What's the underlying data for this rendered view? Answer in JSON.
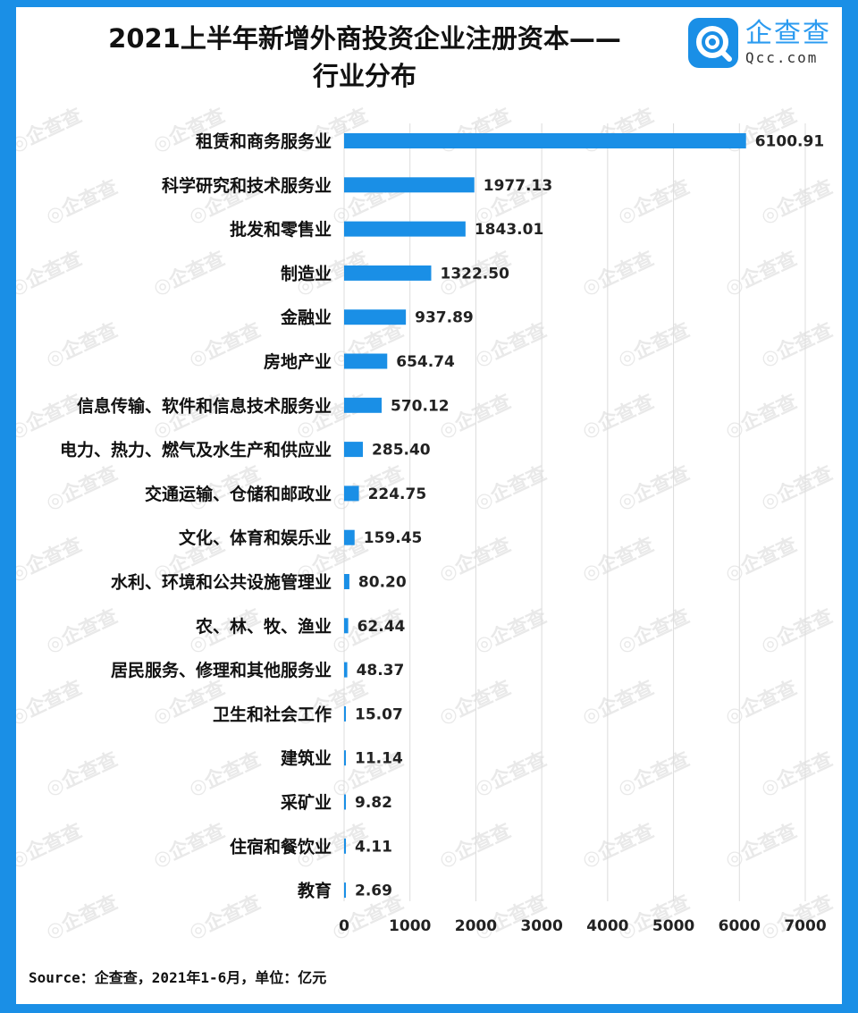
{
  "header": {
    "title_line1": "2021上半年新增外商投资企业注册资本——",
    "title_line2": "行业分布"
  },
  "logo": {
    "icon": "qcc-logo-icon",
    "name_cn": "企查查",
    "name_en": "Qcc.com"
  },
  "watermark_text": "企查查",
  "footer": {
    "source": "Source：企查查，2021年1-6月，单位：亿元"
  },
  "colors": {
    "bar": "#1a8fe6",
    "frame": "#1a8fe6",
    "grid": "#dcdcdc"
  },
  "chart_data": {
    "type": "bar",
    "orientation": "horizontal",
    "categories": [
      "租赁和商务服务业",
      "科学研究和技术服务业",
      "批发和零售业",
      "制造业",
      "金融业",
      "房地产业",
      "信息传输、软件和信息技术服务业",
      "电力、热力、燃气及水生产和供应业",
      "交通运输、仓储和邮政业",
      "文化、体育和娱乐业",
      "水利、环境和公共设施管理业",
      "农、林、牧、渔业",
      "居民服务、修理和其他服务业",
      "卫生和社会工作",
      "建筑业",
      "采矿业",
      "住宿和餐饮业",
      "教育"
    ],
    "values": [
      6100.91,
      1977.13,
      1843.01,
      1322.5,
      937.89,
      654.74,
      570.12,
      285.4,
      224.75,
      159.45,
      80.2,
      62.44,
      48.37,
      15.07,
      11.14,
      9.82,
      4.11,
      2.69
    ],
    "value_labels": [
      "6100.91",
      "1977.13",
      "1843.01",
      "1322.50",
      "937.89",
      "654.74",
      "570.12",
      "285.40",
      "224.75",
      "159.45",
      "80.20",
      "62.44",
      "48.37",
      "15.07",
      "11.14",
      "9.82",
      "4.11",
      "2.69"
    ],
    "xticks": [
      "0",
      "1000",
      "2000",
      "3000",
      "4000",
      "5000",
      "6000",
      "7000"
    ],
    "xlim": [
      0,
      7000
    ],
    "grid": true,
    "legend": "none"
  }
}
